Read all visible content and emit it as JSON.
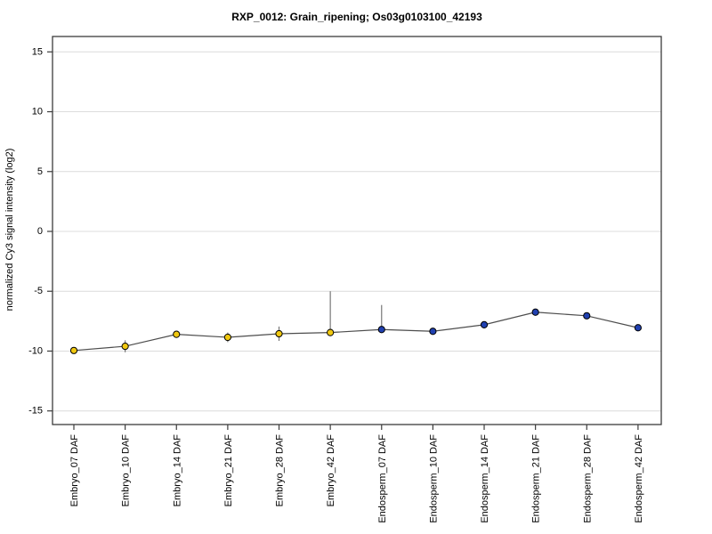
{
  "page": {
    "background_color": "#ffffff"
  },
  "chart_data": {
    "type": "line",
    "title": "RXP_0012: Grain_ripening; Os03g0103100_42193",
    "xlabel": "",
    "ylabel": "normalized Cy3 signal intensity (log2)",
    "ylim": [
      -16.2,
      16.2
    ],
    "yticks": [
      -15,
      -10,
      -5,
      0,
      5,
      10,
      15
    ],
    "grid": "horizontal",
    "legend_position": "none",
    "categories": [
      "Embryo_07 DAF",
      "Embryo_10 DAF",
      "Embryo_14 DAF",
      "Embryo_21 DAF",
      "Embryo_28 DAF",
      "Embryo_42 DAF",
      "Endosperm_07 DAF",
      "Endosperm_10 DAF",
      "Endosperm_14 DAF",
      "Endosperm_21 DAF",
      "Endosperm_28 DAF",
      "Endosperm_42 DAF"
    ],
    "series": [
      {
        "name": "Embryo",
        "marker_color": "#f0c810",
        "category_indices": [
          0,
          1,
          2,
          3,
          4,
          5
        ]
      },
      {
        "name": "Endosperm",
        "marker_color": "#2040b0",
        "category_indices": [
          6,
          7,
          8,
          9,
          10,
          11
        ]
      }
    ],
    "values": [
      -9.95,
      -9.6,
      -8.6,
      -8.85,
      -8.55,
      -8.45,
      -8.2,
      -8.35,
      -7.8,
      -6.75,
      -7.05,
      -8.05
    ],
    "error_up": [
      0,
      0.5,
      0.2,
      0.4,
      0.6,
      3.45,
      2.05,
      0,
      0.2,
      0,
      0.15,
      0
    ],
    "error_down": [
      0,
      0.5,
      0.2,
      0.4,
      0.6,
      0.2,
      0.2,
      0,
      0.3,
      0,
      0.25,
      0
    ],
    "point_colors": [
      "#f0c810",
      "#f0c810",
      "#f0c810",
      "#f0c810",
      "#f0c810",
      "#f0c810",
      "#2040b0",
      "#2040b0",
      "#2040b0",
      "#2040b0",
      "#2040b0",
      "#2040b0"
    ],
    "colors": {
      "line": "#4d4d4d",
      "errorbar": "#777777",
      "marker_edge": "#000000",
      "gridline": "#dcdcdc",
      "frame": "#3c3c3c",
      "background": "#ffffff"
    }
  }
}
